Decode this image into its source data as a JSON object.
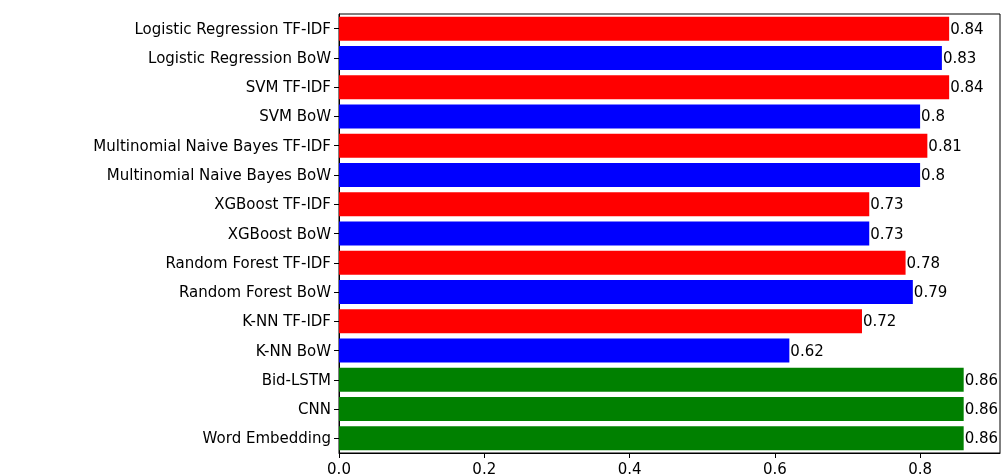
{
  "chart_data": {
    "type": "bar",
    "orientation": "horizontal",
    "categories": [
      "Logistic Regression TF-IDF",
      "Logistic Regression BoW",
      "SVM TF-IDF",
      "SVM BoW",
      "Multinomial Naive Bayes TF-IDF",
      "Multinomial Naive Bayes BoW",
      "XGBoost TF-IDF",
      "XGBoost BoW",
      "Random Forest TF-IDF",
      "Random Forest BoW",
      "K-NN TF-IDF",
      "K-NN BoW",
      "Bid-LSTM",
      "CNN",
      "Word Embedding"
    ],
    "values": [
      0.84,
      0.83,
      0.84,
      0.8,
      0.81,
      0.8,
      0.73,
      0.73,
      0.78,
      0.79,
      0.72,
      0.62,
      0.86,
      0.86,
      0.86
    ],
    "colors": [
      "#ff0000",
      "#0000ff",
      "#ff0000",
      "#0000ff",
      "#ff0000",
      "#0000ff",
      "#ff0000",
      "#0000ff",
      "#ff0000",
      "#0000ff",
      "#ff0000",
      "#0000ff",
      "#008000",
      "#008000",
      "#008000"
    ],
    "xlim": [
      0,
      0.91
    ],
    "xticks": [
      {
        "value": 0,
        "label": "0.0"
      },
      0.2,
      0.4,
      0.6,
      0.8
    ],
    "data_labels": true,
    "grid": false
  }
}
